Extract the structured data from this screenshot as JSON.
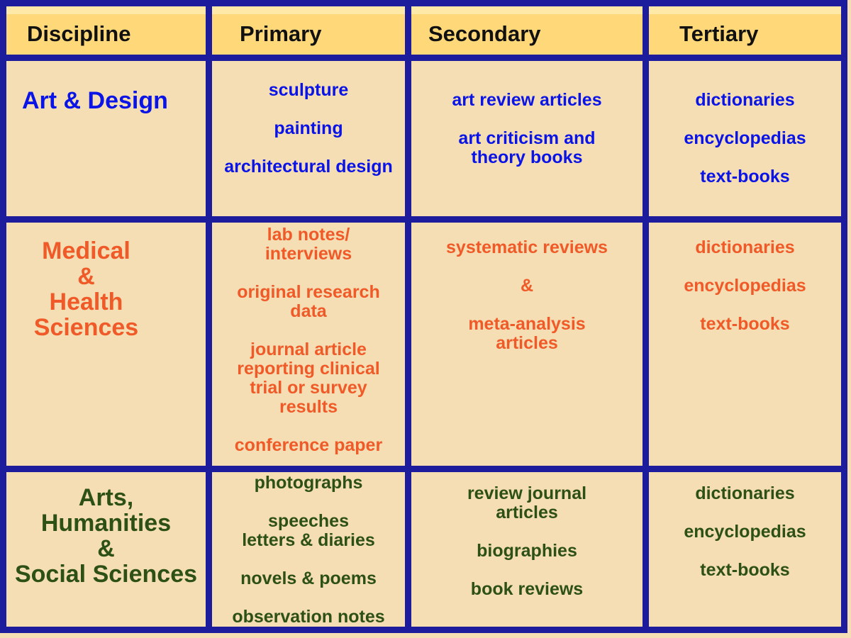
{
  "header": {
    "cells": [
      "Discipline",
      "Primary",
      "Secondary",
      "Tertiary"
    ]
  },
  "rows": [
    {
      "discipline": [
        "Art & Design"
      ],
      "cells": [
        [
          [
            "sculpture"
          ],
          [
            "painting"
          ],
          [
            "architectural design"
          ]
        ],
        [
          [
            "art review articles"
          ],
          [
            "art criticism and",
            "theory books"
          ]
        ],
        [
          [
            "dictionaries"
          ],
          [
            "encyclopedias"
          ],
          [
            "text-books"
          ]
        ]
      ]
    },
    {
      "discipline": [
        "Medical",
        "&",
        "Health",
        "Sciences"
      ],
      "cells": [
        [
          [
            "lab notes/",
            "interviews"
          ],
          [
            "original research",
            "data"
          ],
          [
            "journal article",
            "reporting clinical",
            "trial or survey",
            "results"
          ],
          [
            "conference paper"
          ]
        ],
        [
          [
            "systematic reviews"
          ],
          [
            "&"
          ],
          [
            "meta-analysis",
            "articles"
          ]
        ],
        [
          [
            "dictionaries"
          ],
          [
            "encyclopedias"
          ],
          [
            "text-books"
          ]
        ]
      ]
    },
    {
      "discipline": [
        "Arts,",
        "Humanities",
        "&",
        "Social Sciences"
      ],
      "cells": [
        [
          [
            "photographs"
          ],
          [
            "speeches",
            "letters & diaries"
          ],
          [
            "novels & poems"
          ],
          [
            "observation notes"
          ]
        ],
        [
          [
            "review journal",
            "articles"
          ],
          [
            "biographies"
          ],
          [
            "book reviews"
          ]
        ],
        [
          [
            "dictionaries"
          ],
          [
            "encyclopedias"
          ],
          [
            "text-books"
          ]
        ]
      ]
    }
  ]
}
